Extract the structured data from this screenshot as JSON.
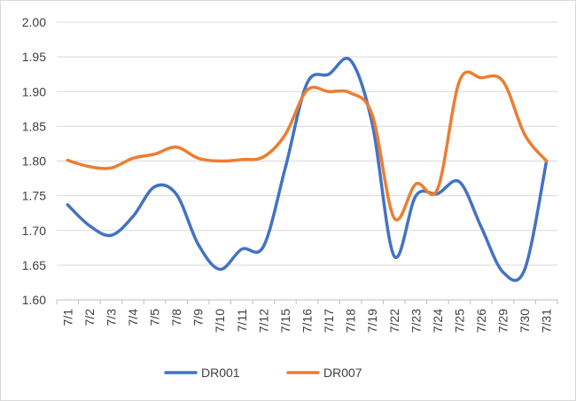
{
  "chart_data": {
    "type": "line",
    "title": "",
    "xlabel": "",
    "ylabel": "",
    "ylim": [
      1.6,
      2.0
    ],
    "yticks": [
      "1.60",
      "1.65",
      "1.70",
      "1.75",
      "1.80",
      "1.85",
      "1.90",
      "1.95",
      "2.00"
    ],
    "grid": "horizontal",
    "legend": "bottom",
    "categories": [
      "7/1",
      "7/2",
      "7/3",
      "7/4",
      "7/5",
      "7/8",
      "7/9",
      "7/10",
      "7/11",
      "7/12",
      "7/15",
      "7/16",
      "7/17",
      "7/18",
      "7/19",
      "7/22",
      "7/23",
      "7/24",
      "7/25",
      "7/26",
      "7/29",
      "7/30",
      "7/31"
    ],
    "series": [
      {
        "name": "DR001",
        "color": "#4472C4",
        "values": [
          1.737,
          1.707,
          1.693,
          1.72,
          1.763,
          1.752,
          1.68,
          1.644,
          1.673,
          1.677,
          1.79,
          1.912,
          1.925,
          1.945,
          1.853,
          1.663,
          1.75,
          1.753,
          1.77,
          1.705,
          1.64,
          1.644,
          1.8
        ]
      },
      {
        "name": "DR007",
        "color": "#ED7D31",
        "values": [
          1.801,
          1.792,
          1.79,
          1.804,
          1.81,
          1.82,
          1.804,
          1.8,
          1.802,
          1.806,
          1.838,
          1.902,
          1.9,
          1.898,
          1.866,
          1.718,
          1.767,
          1.76,
          1.915,
          1.92,
          1.915,
          1.838,
          1.8
        ]
      }
    ]
  }
}
